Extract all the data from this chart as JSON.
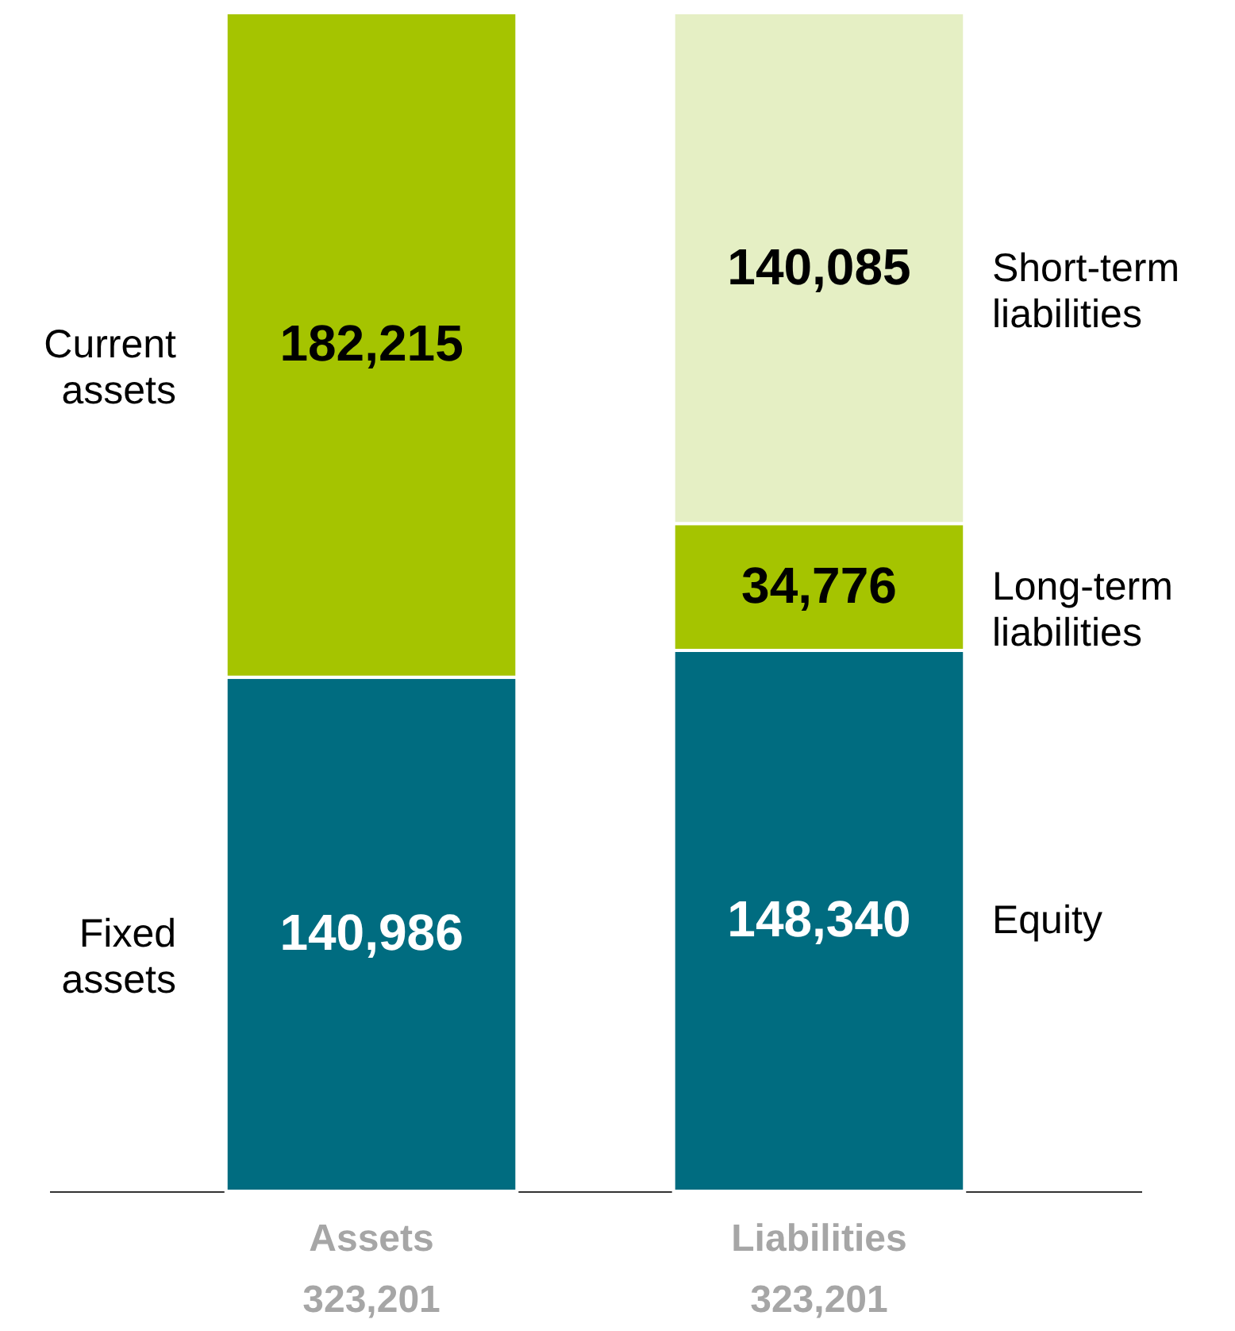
{
  "chart_data": {
    "type": "bar",
    "stacked": true,
    "categories": [
      "Assets",
      "Liabilities"
    ],
    "totals": [
      "323,201",
      "323,201"
    ],
    "series": [
      {
        "name": "Fixed assets",
        "color": "#006c80",
        "values": [
          140986,
          null
        ],
        "value_labels": [
          "140,986",
          null
        ]
      },
      {
        "name": "Current assets",
        "color": "#a5c400",
        "values": [
          182215,
          null
        ],
        "value_labels": [
          "182,215",
          null
        ]
      },
      {
        "name": "Equity",
        "color": "#006c80",
        "values": [
          null,
          148340
        ],
        "value_labels": [
          null,
          "148,340"
        ]
      },
      {
        "name": "Long-term liabilities",
        "color": "#a5c400",
        "values": [
          null,
          34776
        ],
        "value_labels": [
          null,
          "34,776"
        ]
      },
      {
        "name": "Short-term liabilities",
        "color": "#e5efc4",
        "values": [
          null,
          140085
        ],
        "value_labels": [
          null,
          "140,085"
        ]
      }
    ]
  }
}
